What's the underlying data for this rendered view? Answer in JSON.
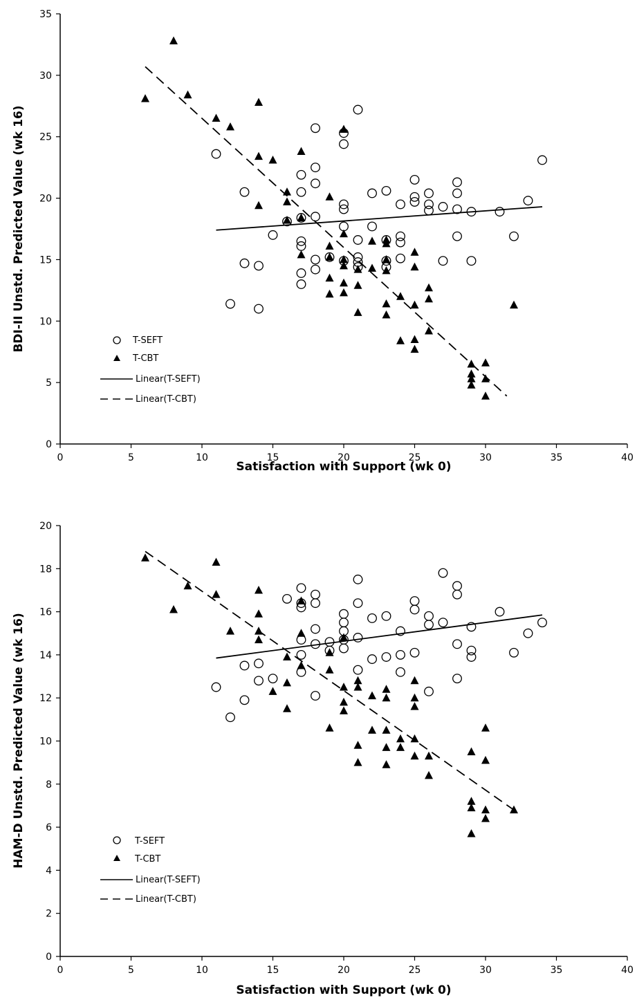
{
  "chart_data": [
    {
      "type": "scatter",
      "xlabel": "Satisfaction with Support (wk 0)",
      "ylabel": "BDI-II Unstd. Predicted Value (wk 16)",
      "xlim": [
        0,
        40
      ],
      "ylim": [
        0,
        35
      ],
      "xticks": [
        0,
        5,
        10,
        15,
        20,
        25,
        30,
        35,
        40
      ],
      "yticks": [
        0,
        5,
        10,
        15,
        20,
        25,
        30,
        35
      ],
      "grid": false,
      "legend_position": "lower-left",
      "series": [
        {
          "name": "T-SEFT",
          "marker": "open-circle",
          "points": [
            [
              11,
              23.6
            ],
            [
              12,
              11.4
            ],
            [
              13,
              20.5
            ],
            [
              13,
              14.7
            ],
            [
              14,
              14.5
            ],
            [
              14,
              11
            ],
            [
              15,
              17
            ],
            [
              16,
              18.1
            ],
            [
              17,
              21.9
            ],
            [
              17,
              20.5
            ],
            [
              17,
              18.4
            ],
            [
              17,
              16.5
            ],
            [
              17,
              16.1
            ],
            [
              17,
              13.9
            ],
            [
              17,
              13
            ],
            [
              18,
              25.7
            ],
            [
              18,
              22.5
            ],
            [
              18,
              21.2
            ],
            [
              18,
              18.5
            ],
            [
              18,
              15
            ],
            [
              18,
              14.2
            ],
            [
              19,
              15.2
            ],
            [
              20,
              25.3
            ],
            [
              20,
              24.4
            ],
            [
              20,
              19.5
            ],
            [
              20,
              19.1
            ],
            [
              20,
              17.7
            ],
            [
              20,
              14.9
            ],
            [
              21,
              27.2
            ],
            [
              21,
              16.6
            ],
            [
              21,
              15.2
            ],
            [
              21,
              14.8
            ],
            [
              21,
              14.4
            ],
            [
              22,
              20.4
            ],
            [
              22,
              17.7
            ],
            [
              23,
              20.6
            ],
            [
              23,
              16.6
            ],
            [
              23,
              14.9
            ],
            [
              23,
              14.4
            ],
            [
              24,
              19.5
            ],
            [
              24,
              16.9
            ],
            [
              24,
              16.4
            ],
            [
              24,
              15.1
            ],
            [
              25,
              21.5
            ],
            [
              25,
              20.1
            ],
            [
              25,
              19.7
            ],
            [
              26,
              20.4
            ],
            [
              26,
              19.5
            ],
            [
              26,
              19
            ],
            [
              27,
              19.3
            ],
            [
              27,
              14.9
            ],
            [
              28,
              21.3
            ],
            [
              28,
              20.4
            ],
            [
              28,
              19.1
            ],
            [
              28,
              16.9
            ],
            [
              29,
              18.9
            ],
            [
              29,
              14.9
            ],
            [
              31,
              18.9
            ],
            [
              32,
              16.9
            ],
            [
              33,
              19.8
            ],
            [
              34,
              23.1
            ]
          ]
        },
        {
          "name": "T-CBT",
          "marker": "filled-triangle",
          "points": [
            [
              6,
              28.1
            ],
            [
              8,
              32.8
            ],
            [
              9,
              28.4
            ],
            [
              11,
              26.5
            ],
            [
              12,
              25.8
            ],
            [
              14,
              27.8
            ],
            [
              14,
              23.4
            ],
            [
              14,
              19.4
            ],
            [
              15,
              23.1
            ],
            [
              16,
              20.5
            ],
            [
              16,
              19.7
            ],
            [
              16,
              18.2
            ],
            [
              17,
              23.8
            ],
            [
              17,
              18.4
            ],
            [
              17,
              15.4
            ],
            [
              19,
              20.1
            ],
            [
              19,
              16.1
            ],
            [
              19,
              15.2
            ],
            [
              19,
              13.5
            ],
            [
              19,
              12.2
            ],
            [
              20,
              25.6
            ],
            [
              20,
              17.1
            ],
            [
              20,
              15
            ],
            [
              20,
              14.5
            ],
            [
              20,
              13.1
            ],
            [
              20,
              12.3
            ],
            [
              21,
              14.2
            ],
            [
              21,
              12.9
            ],
            [
              21,
              10.7
            ],
            [
              22,
              16.5
            ],
            [
              22,
              14.3
            ],
            [
              23,
              16.6
            ],
            [
              23,
              16.3
            ],
            [
              23,
              15
            ],
            [
              23,
              14.1
            ],
            [
              23,
              11.4
            ],
            [
              23,
              10.5
            ],
            [
              24,
              12
            ],
            [
              24,
              8.4
            ],
            [
              25,
              15.6
            ],
            [
              25,
              14.4
            ],
            [
              25,
              11.3
            ],
            [
              25,
              8.5
            ],
            [
              25,
              7.7
            ],
            [
              26,
              12.7
            ],
            [
              26,
              11.8
            ],
            [
              26,
              9.2
            ],
            [
              29,
              6.5
            ],
            [
              29,
              5.7
            ],
            [
              29,
              5.3
            ],
            [
              29,
              4.8
            ],
            [
              30,
              6.6
            ],
            [
              30,
              5.3
            ],
            [
              30,
              3.9
            ],
            [
              32,
              11.3
            ]
          ]
        }
      ],
      "trendlines": [
        {
          "name": "Linear(T-SEFT)",
          "style": "solid",
          "x": [
            11,
            34
          ],
          "y": [
            17.4,
            19.3
          ]
        },
        {
          "name": "Linear(T-CBT)",
          "style": "dashed",
          "x": [
            6,
            31.5
          ],
          "y": [
            30.7,
            3.9
          ]
        }
      ],
      "legend": [
        "T-SEFT",
        "T-CBT",
        "Linear(T-SEFT)",
        "Linear(T-CBT)"
      ]
    },
    {
      "type": "scatter",
      "xlabel": "Satisfaction with Support (wk 0)",
      "ylabel": "HAM-D Unstd. Predicted Value (wk 16)",
      "xlim": [
        0,
        40
      ],
      "ylim": [
        0,
        20
      ],
      "xticks": [
        0,
        5,
        10,
        15,
        20,
        25,
        30,
        35,
        40
      ],
      "yticks": [
        0,
        2,
        4,
        6,
        8,
        10,
        12,
        14,
        16,
        18,
        20
      ],
      "grid": false,
      "legend_position": "lower-left",
      "series": [
        {
          "name": "T-SEFT",
          "marker": "open-circle",
          "points": [
            [
              11,
              12.5
            ],
            [
              12,
              11.1
            ],
            [
              13,
              13.5
            ],
            [
              13,
              11.9
            ],
            [
              14,
              13.6
            ],
            [
              14,
              12.8
            ],
            [
              15,
              12.9
            ],
            [
              16,
              16.6
            ],
            [
              17,
              17.1
            ],
            [
              17,
              16.4
            ],
            [
              17,
              16.2
            ],
            [
              17,
              14.7
            ],
            [
              17,
              14
            ],
            [
              17,
              13.2
            ],
            [
              18,
              16.8
            ],
            [
              18,
              16.4
            ],
            [
              18,
              15.2
            ],
            [
              18,
              14.5
            ],
            [
              18,
              12.1
            ],
            [
              19,
              14.6
            ],
            [
              19,
              14.2
            ],
            [
              20,
              15.9
            ],
            [
              20,
              15.5
            ],
            [
              20,
              15.1
            ],
            [
              20,
              14.7
            ],
            [
              20,
              14.3
            ],
            [
              21,
              17.5
            ],
            [
              21,
              16.4
            ],
            [
              21,
              14.8
            ],
            [
              21,
              13.3
            ],
            [
              22,
              15.7
            ],
            [
              22,
              13.8
            ],
            [
              23,
              15.8
            ],
            [
              23,
              13.9
            ],
            [
              24,
              15.1
            ],
            [
              24,
              14
            ],
            [
              24,
              13.2
            ],
            [
              25,
              16.5
            ],
            [
              25,
              16.1
            ],
            [
              25,
              14.1
            ],
            [
              26,
              15.8
            ],
            [
              26,
              15.4
            ],
            [
              26,
              12.3
            ],
            [
              27,
              17.8
            ],
            [
              27,
              15.5
            ],
            [
              28,
              17.2
            ],
            [
              28,
              16.8
            ],
            [
              28,
              14.5
            ],
            [
              28,
              12.9
            ],
            [
              29,
              15.3
            ],
            [
              29,
              14.2
            ],
            [
              29,
              13.9
            ],
            [
              31,
              16
            ],
            [
              32,
              14.1
            ],
            [
              33,
              15
            ],
            [
              34,
              15.5
            ]
          ]
        },
        {
          "name": "T-CBT",
          "marker": "filled-triangle",
          "points": [
            [
              6,
              18.5
            ],
            [
              8,
              16.1
            ],
            [
              9,
              17.2
            ],
            [
              11,
              18.3
            ],
            [
              11,
              16.8
            ],
            [
              12,
              15.1
            ],
            [
              14,
              17
            ],
            [
              14,
              15.9
            ],
            [
              14,
              15.1
            ],
            [
              14,
              14.7
            ],
            [
              15,
              12.3
            ],
            [
              16,
              13.9
            ],
            [
              16,
              12.7
            ],
            [
              16,
              11.5
            ],
            [
              17,
              16.5
            ],
            [
              17,
              15
            ],
            [
              17,
              13.5
            ],
            [
              19,
              14.1
            ],
            [
              19,
              13.3
            ],
            [
              19,
              10.6
            ],
            [
              20,
              14.8
            ],
            [
              20,
              12.5
            ],
            [
              20,
              11.8
            ],
            [
              20,
              11.4
            ],
            [
              21,
              12.8
            ],
            [
              21,
              12.5
            ],
            [
              21,
              9.8
            ],
            [
              21,
              9
            ],
            [
              22,
              12.1
            ],
            [
              22,
              10.5
            ],
            [
              23,
              12.4
            ],
            [
              23,
              12
            ],
            [
              23,
              10.5
            ],
            [
              23,
              9.7
            ],
            [
              23,
              8.9
            ],
            [
              24,
              10.1
            ],
            [
              24,
              9.7
            ],
            [
              25,
              12.8
            ],
            [
              25,
              12
            ],
            [
              25,
              11.6
            ],
            [
              25,
              10.1
            ],
            [
              25,
              9.3
            ],
            [
              26,
              9.3
            ],
            [
              26,
              8.4
            ],
            [
              29,
              9.5
            ],
            [
              29,
              7.2
            ],
            [
              29,
              6.9
            ],
            [
              29,
              5.7
            ],
            [
              30,
              10.6
            ],
            [
              30,
              9.1
            ],
            [
              30,
              6.8
            ],
            [
              30,
              6.4
            ],
            [
              32,
              6.8
            ]
          ]
        }
      ],
      "trendlines": [
        {
          "name": "Linear(T-SEFT)",
          "style": "solid",
          "x": [
            11,
            34
          ],
          "y": [
            13.85,
            15.85
          ]
        },
        {
          "name": "Linear(T-CBT)",
          "style": "dashed",
          "x": [
            6,
            32
          ],
          "y": [
            18.8,
            6.8
          ]
        }
      ],
      "legend": [
        "T-SEFT",
        "T-CBT",
        "Linear(T-SEFT)",
        "Linear(T-CBT)"
      ]
    }
  ]
}
